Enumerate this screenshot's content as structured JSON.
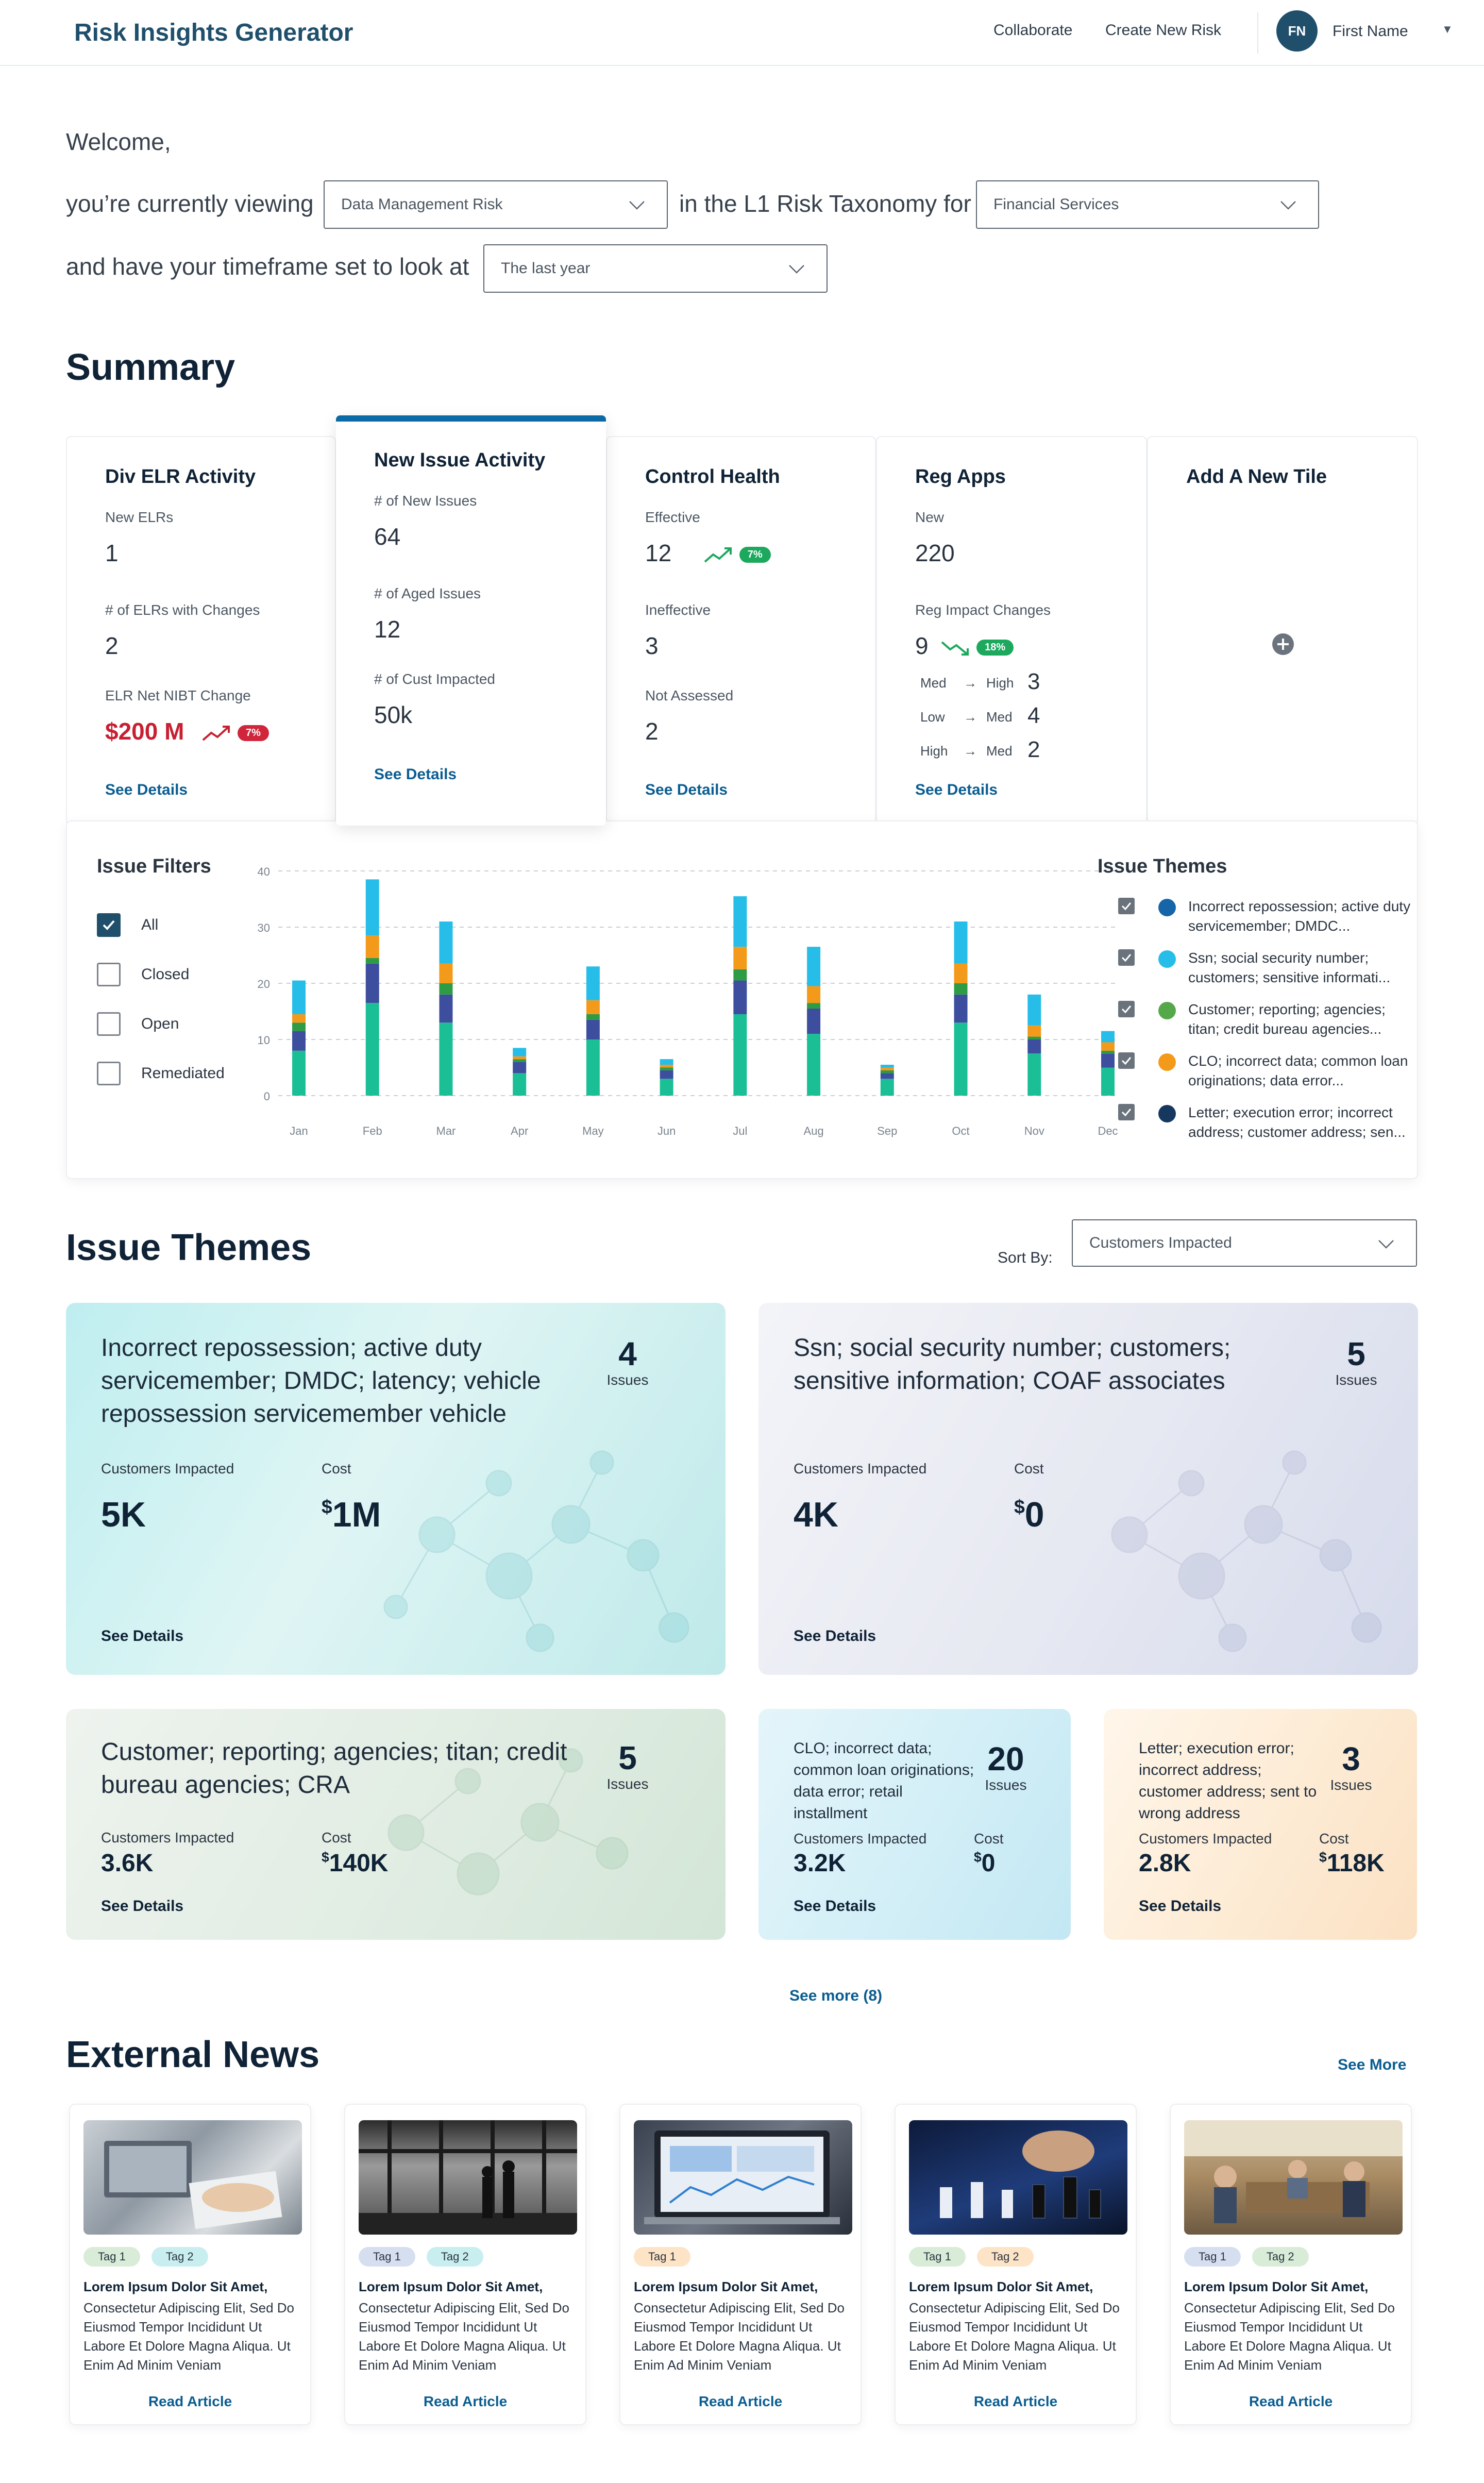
{
  "app": {
    "title": "Risk Insights Generator",
    "nav": [
      "Collaborate",
      "Create New Risk"
    ],
    "user_initials": "FN",
    "user_name": "First Name"
  },
  "welcome": {
    "greeting": "Welcome,",
    "line1": "you’re currently viewing",
    "risk_select": "Data Management Risk",
    "line1b": "in the L1 Risk Taxonomy for",
    "industry_select": "Financial Services",
    "line2": "and have your timeframe set to look at",
    "timeframe_select": "The last year"
  },
  "summary": {
    "title": "Summary",
    "tiles": [
      {
        "title": "Div ELR Activity",
        "metrics": [
          {
            "label": "New ELRs",
            "value": "1"
          },
          {
            "label": "# of ELRs with Changes",
            "value": "2"
          },
          {
            "label": "ELR Net NIBT Change",
            "value": "$200 M",
            "badge": "7%"
          }
        ],
        "link": "See Details"
      },
      {
        "title": "New Issue Activity",
        "metrics": [
          {
            "label": "# of New Issues",
            "value": "64"
          },
          {
            "label": "# of Aged Issues",
            "value": "12"
          },
          {
            "label": "# of Cust Impacted",
            "value": "50k"
          }
        ],
        "link": "See Details"
      },
      {
        "title": "Control Health",
        "metrics": [
          {
            "label": "Effective",
            "value": "12",
            "badge": "7%"
          },
          {
            "label": "Ineffective",
            "value": "3"
          },
          {
            "label": "Not Assessed",
            "value": "2"
          }
        ],
        "link": "See Details"
      },
      {
        "title": "Reg Apps",
        "metrics": [
          {
            "label": "New",
            "value": "220"
          },
          {
            "label": "Reg Impact Changes",
            "value": "9",
            "badge": "18%"
          }
        ],
        "transitions": [
          {
            "from": "Med",
            "arrow": "→",
            "to": "High",
            "count": "3"
          },
          {
            "from": "Low",
            "arrow": "→",
            "to": "Med",
            "count": "4"
          },
          {
            "from": "High",
            "arrow": "→",
            "to": "Med",
            "count": "2"
          }
        ],
        "link": "See Details"
      },
      {
        "title": "Add A New Tile",
        "add_icon": "plus-icon"
      }
    ]
  },
  "issue_filters": {
    "title": "Issue Filters",
    "options": [
      {
        "label": "All",
        "checked": true
      },
      {
        "label": "Closed",
        "checked": false
      },
      {
        "label": "Open",
        "checked": false
      },
      {
        "label": "Remediated",
        "checked": false
      }
    ]
  },
  "chart_data": {
    "type": "bar",
    "stacked": true,
    "categories": [
      "Jan",
      "Feb",
      "Mar",
      "Apr",
      "May",
      "Jun",
      "Jul",
      "Aug",
      "Sep",
      "Oct",
      "Nov",
      "Dec"
    ],
    "ylim": [
      0,
      40
    ],
    "yticks": [
      0,
      10,
      20,
      30,
      40
    ],
    "grid": true,
    "series": [
      {
        "name": "Incorrect repossession",
        "color": "#1bbf96",
        "values": [
          8,
          16.5,
          13,
          4,
          10,
          3,
          14.5,
          11,
          3,
          13,
          7.5,
          5
        ]
      },
      {
        "name": "Letter; execution error",
        "color": "#3d4e9e",
        "values": [
          3.5,
          7,
          5,
          2,
          3.5,
          1.5,
          6,
          4.5,
          1,
          5,
          2.5,
          2.5
        ]
      },
      {
        "name": "Customer; reporting",
        "color": "#2e9b45",
        "values": [
          1.5,
          1,
          2,
          0.5,
          1,
          0.5,
          2,
          1,
          0.5,
          2,
          0.5,
          0.5
        ]
      },
      {
        "name": "CLO; incorrect data",
        "color": "#f39a1b",
        "values": [
          1.5,
          4,
          3.5,
          0.5,
          2.5,
          0.5,
          4,
          3,
          0.5,
          3.5,
          2,
          1.5
        ]
      },
      {
        "name": "Ssn; social security",
        "color": "#26bde8",
        "values": [
          6,
          10,
          7.5,
          1.5,
          6,
          1,
          9,
          7,
          0.5,
          7.5,
          5.5,
          2
        ]
      }
    ]
  },
  "issue_themes_legend": {
    "title": "Issue Themes",
    "items": [
      {
        "label": "Incorrect repossession; active duty servicemember; DMDC...",
        "color": "#1565a8"
      },
      {
        "label": "Ssn; social security number; customers; sensitive informati...",
        "color": "#26bde8"
      },
      {
        "label": "Customer; reporting; agencies; titan; credit bureau agencies...",
        "color": "#55a84a"
      },
      {
        "label": "CLO; incorrect data; common loan originations; data error...",
        "color": "#f39a1b"
      },
      {
        "label": "Letter; execution error; incorrect address; customer address; sen...",
        "color": "#16385e"
      }
    ]
  },
  "issue_themes": {
    "title": "Issue Themes",
    "sort_label": "Sort By:",
    "sort_value": "Customers Impacted",
    "cards": [
      {
        "title": "Incorrect repossession; active duty servicemember; DMDC; latency; vehicle repossession servicemember vehicle",
        "count": "4",
        "count_label": "Issues",
        "cust_label": "Customers Impacted",
        "cust_value": "5K",
        "cost_label": "Cost",
        "cost_sym": "$",
        "cost_value": "1M",
        "link": "See Details"
      },
      {
        "title": "Ssn; social security number; customers; sensitive information; COAF associates",
        "count": "5",
        "count_label": "Issues",
        "cust_label": "Customers Impacted",
        "cust_value": "4K",
        "cost_label": "Cost",
        "cost_sym": "$",
        "cost_value": "0",
        "link": "See Details"
      },
      {
        "title": "Customer; reporting; agencies; titan; credit bureau agencies; CRA",
        "count": "5",
        "count_label": "Issues",
        "cust_label": "Customers Impacted",
        "cust_value": "3.6K",
        "cost_label": "Cost",
        "cost_sym": "$",
        "cost_value": "140K",
        "link": "See Details"
      },
      {
        "title": "CLO; incorrect data; common loan originations; data error; retail installment",
        "count": "20",
        "count_label": "Issues",
        "cust_label": "Customers Impacted",
        "cust_value": "3.2K",
        "cost_label": "Cost",
        "cost_sym": "$",
        "cost_value": "0",
        "link": "See Details"
      },
      {
        "title": "Letter; execution error; incorrect address; customer address; sent to wrong address",
        "count": "3",
        "count_label": "Issues",
        "cust_label": "Customers Impacted",
        "cust_value": "2.8K",
        "cost_label": "Cost",
        "cost_sym": "$",
        "cost_value": "118K",
        "link": "See Details"
      }
    ],
    "see_more": "See more (8)"
  },
  "news": {
    "title": "External News",
    "see_more": "See More",
    "articles": [
      {
        "tags": [
          "Tag 1",
          "Tag 2"
        ],
        "title": "Lorem Ipsum Dolor Sit Amet,",
        "body": "Consectetur Adipiscing Elit, Sed Do Eiusmod Tempor Incididunt Ut Labore Et Dolore Magna Aliqua. Ut Enim Ad Minim Veniam",
        "link": "Read Article",
        "image": "laptop-documents-photo"
      },
      {
        "tags": [
          "Tag 1",
          "Tag 2"
        ],
        "title": "Lorem Ipsum Dolor Sit Amet,",
        "body": "Consectetur Adipiscing Elit, Sed Do Eiusmod Tempor Incididunt Ut Labore Et Dolore Magna Aliqua. Ut Enim Ad Minim Veniam",
        "link": "Read Article",
        "image": "office-window-photo"
      },
      {
        "tags": [
          "Tag 1"
        ],
        "title": "Lorem Ipsum Dolor Sit Amet,",
        "body": "Consectetur Adipiscing Elit, Sed Do Eiusmod Tempor Incididunt Ut Labore Et Dolore Magna Aliqua. Ut Enim Ad Minim Veniam",
        "link": "Read Article",
        "image": "dashboard-laptop-photo"
      },
      {
        "tags": [
          "Tag 1",
          "Tag 2"
        ],
        "title": "Lorem Ipsum Dolor Sit Amet,",
        "body": "Consectetur Adipiscing Elit, Sed Do Eiusmod Tempor Incididunt Ut Labore Et Dolore Magna Aliqua. Ut Enim Ad Minim Veniam",
        "link": "Read Article",
        "image": "chess-photo"
      },
      {
        "tags": [
          "Tag 1",
          "Tag 2"
        ],
        "title": "Lorem Ipsum Dolor Sit Amet,",
        "body": "Consectetur Adipiscing Elit, Sed Do Eiusmod Tempor Incididunt Ut Labore Et Dolore Magna Aliqua. Ut Enim Ad Minim Veniam",
        "link": "Read Article",
        "image": "team-meeting-photo"
      }
    ]
  }
}
